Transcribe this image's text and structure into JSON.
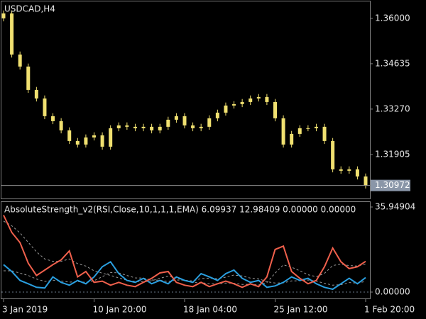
{
  "chart_data": [
    {
      "type": "candlestick",
      "title": "USDCAD,H4",
      "color": "#f0e070",
      "price_line_color": "#8c8c8c",
      "label_bg": "#8a96a8",
      "open": [
        1.36,
        1.36149,
        1.34912,
        1.3455,
        1.33846,
        1.3359,
        1.33057,
        1.32907,
        1.3263,
        1.3231,
        1.32203,
        1.32417,
        1.32481,
        1.32139,
        1.32694,
        1.32779,
        1.32737,
        1.32694,
        1.32737,
        1.3263,
        1.32737,
        1.3295,
        1.33057,
        1.32779,
        1.32694,
        1.32737,
        1.32993,
        1.33163,
        1.33377,
        1.33419,
        1.33483,
        1.3359,
        1.33633,
        1.33483,
        1.32993,
        1.32203,
        1.32523,
        1.32694,
        1.32694,
        1.32737,
        1.3231,
        1.31457,
        1.31414,
        1.31457,
        1.31243
      ],
      "high": [
        1.36239,
        1.36239,
        1.35002,
        1.3464,
        1.33936,
        1.3368,
        1.33147,
        1.32997,
        1.3272,
        1.324,
        1.32507,
        1.32571,
        1.32571,
        1.32784,
        1.32869,
        1.32869,
        1.32827,
        1.32827,
        1.32827,
        1.32827,
        1.3304,
        1.33147,
        1.33147,
        1.32869,
        1.32827,
        1.33083,
        1.33253,
        1.33467,
        1.33509,
        1.33573,
        1.3368,
        1.33723,
        1.33723,
        1.33573,
        1.33083,
        1.32613,
        1.32784,
        1.32784,
        1.32827,
        1.32827,
        1.324,
        1.31547,
        1.31547,
        1.31547,
        1.31333
      ],
      "low": [
        1.3591,
        1.34822,
        1.3446,
        1.33756,
        1.335,
        1.32967,
        1.32817,
        1.3254,
        1.3222,
        1.32113,
        1.32113,
        1.32327,
        1.32049,
        1.32049,
        1.32604,
        1.32647,
        1.32604,
        1.32604,
        1.3254,
        1.3254,
        1.32647,
        1.3286,
        1.32689,
        1.32604,
        1.32604,
        1.32647,
        1.32903,
        1.33073,
        1.33287,
        1.33329,
        1.33393,
        1.335,
        1.33393,
        1.32903,
        1.32113,
        1.32113,
        1.32433,
        1.32604,
        1.32604,
        1.3222,
        1.31367,
        1.31324,
        1.31324,
        1.31153,
        1.30882
      ],
      "close": [
        1.36149,
        1.34912,
        1.3455,
        1.33846,
        1.3359,
        1.33057,
        1.32907,
        1.3263,
        1.3231,
        1.32203,
        1.32417,
        1.32481,
        1.32139,
        1.32694,
        1.32779,
        1.32737,
        1.32694,
        1.32737,
        1.3263,
        1.32737,
        1.3295,
        1.33057,
        1.32779,
        1.32694,
        1.32737,
        1.32993,
        1.33163,
        1.33377,
        1.33419,
        1.33483,
        1.3359,
        1.33633,
        1.33483,
        1.32993,
        1.32203,
        1.32523,
        1.32694,
        1.32694,
        1.32737,
        1.3231,
        1.31457,
        1.31414,
        1.31457,
        1.31243,
        1.30972
      ],
      "ylim": [
        1.3058,
        1.3651
      ],
      "yticks": [
        {
          "value": 1.36,
          "label": "1.36000"
        },
        {
          "value": 1.34635,
          "label": "1.34635"
        },
        {
          "value": 1.3327,
          "label": "1.33270"
        },
        {
          "value": 1.31905,
          "label": "1.31905"
        }
      ]
    },
    {
      "type": "line",
      "title": "AbsoluteStrength_v2(RSI,Close,10,1,1,1,EMA) 6.09937 12.98409 0.00000 0.00000",
      "series": [
        {
          "color": "#f0604c",
          "values": [
            32.5,
            25.2,
            20.9,
            12.2,
            7.0,
            9.3,
            11.6,
            13.6,
            17.4,
            6.4,
            8.7,
            4.1,
            4.6,
            2.9,
            4.1,
            2.9,
            2.3,
            4.1,
            5.8,
            8.1,
            8.7,
            4.1,
            2.9,
            2.3,
            4.1,
            2.3,
            3.5,
            4.6,
            3.5,
            2.0,
            3.5,
            2.3,
            6.4,
            18.0,
            19.4,
            8.7,
            5.8,
            3.5,
            4.9,
            10.7,
            18.6,
            12.8,
            9.9,
            10.7,
            12.98409
          ]
        },
        {
          "color": "#2a9fe0",
          "values": [
            11.6,
            8.7,
            4.9,
            3.5,
            2.0,
            1.7,
            6.4,
            4.1,
            2.9,
            4.9,
            3.5,
            6.4,
            10.7,
            12.8,
            7.8,
            4.9,
            4.1,
            5.8,
            3.5,
            4.9,
            3.5,
            6.4,
            4.9,
            4.1,
            7.8,
            6.4,
            4.9,
            7.8,
            9.3,
            5.8,
            4.1,
            4.9,
            2.0,
            2.6,
            4.1,
            6.4,
            4.9,
            5.8,
            3.5,
            2.0,
            1.2,
            3.5,
            5.8,
            3.5,
            6.09937
          ]
        },
        {
          "color": "#9a9a9a",
          "dashed": true,
          "values": [
            30,
            28,
            25,
            21,
            17,
            14,
            13,
            13,
            14,
            12,
            11,
            9,
            8,
            7,
            6,
            5,
            4.5,
            4.3,
            4.8,
            5.8,
            6.7,
            5.9,
            4.9,
            4.0,
            4.0,
            3.5,
            3.5,
            3.8,
            3.7,
            3.2,
            3.3,
            3.0,
            4.0,
            8.0,
            11.5,
            10.5,
            9.0,
            7.3,
            6.5,
            7.9,
            11.2,
            11.8,
            11.2,
            11.0,
            11.8
          ]
        },
        {
          "color": "#9a9a9a",
          "dashed": true,
          "values": [
            9,
            9,
            8,
            7,
            5.5,
            4.5,
            5.0,
            4.7,
            4.2,
            4.4,
            4.1,
            4.8,
            6.5,
            8.3,
            8.1,
            7.0,
            6.0,
            5.9,
            5.1,
            5.0,
            4.5,
            5.1,
            5.0,
            4.7,
            5.7,
            5.9,
            5.6,
            6.3,
            7.2,
            6.8,
            5.9,
            5.6,
            4.4,
            3.8,
            3.9,
            4.7,
            4.8,
            5.1,
            4.6,
            3.7,
            2.9,
            3.1,
            4.0,
            3.8,
            4.5
          ]
        }
      ],
      "ylim": [
        -2.4,
        38.05
      ],
      "yticks": [
        35.94904,
        {
          "value": 0,
          "label": "0.00000"
        }
      ],
      "zero_line_color": "#6a7a8a",
      "xticks": [
        {
          "value": 0,
          "label": "3 Jan 2019"
        },
        {
          "value": 11,
          "label": "10 Jan 20:00"
        },
        {
          "value": 22,
          "label": "18 Jan 04:00"
        },
        {
          "value": 33,
          "label": "25 Jan 12:00"
        },
        {
          "value": 44,
          "label": "1 Feb 20:00"
        }
      ]
    }
  ]
}
